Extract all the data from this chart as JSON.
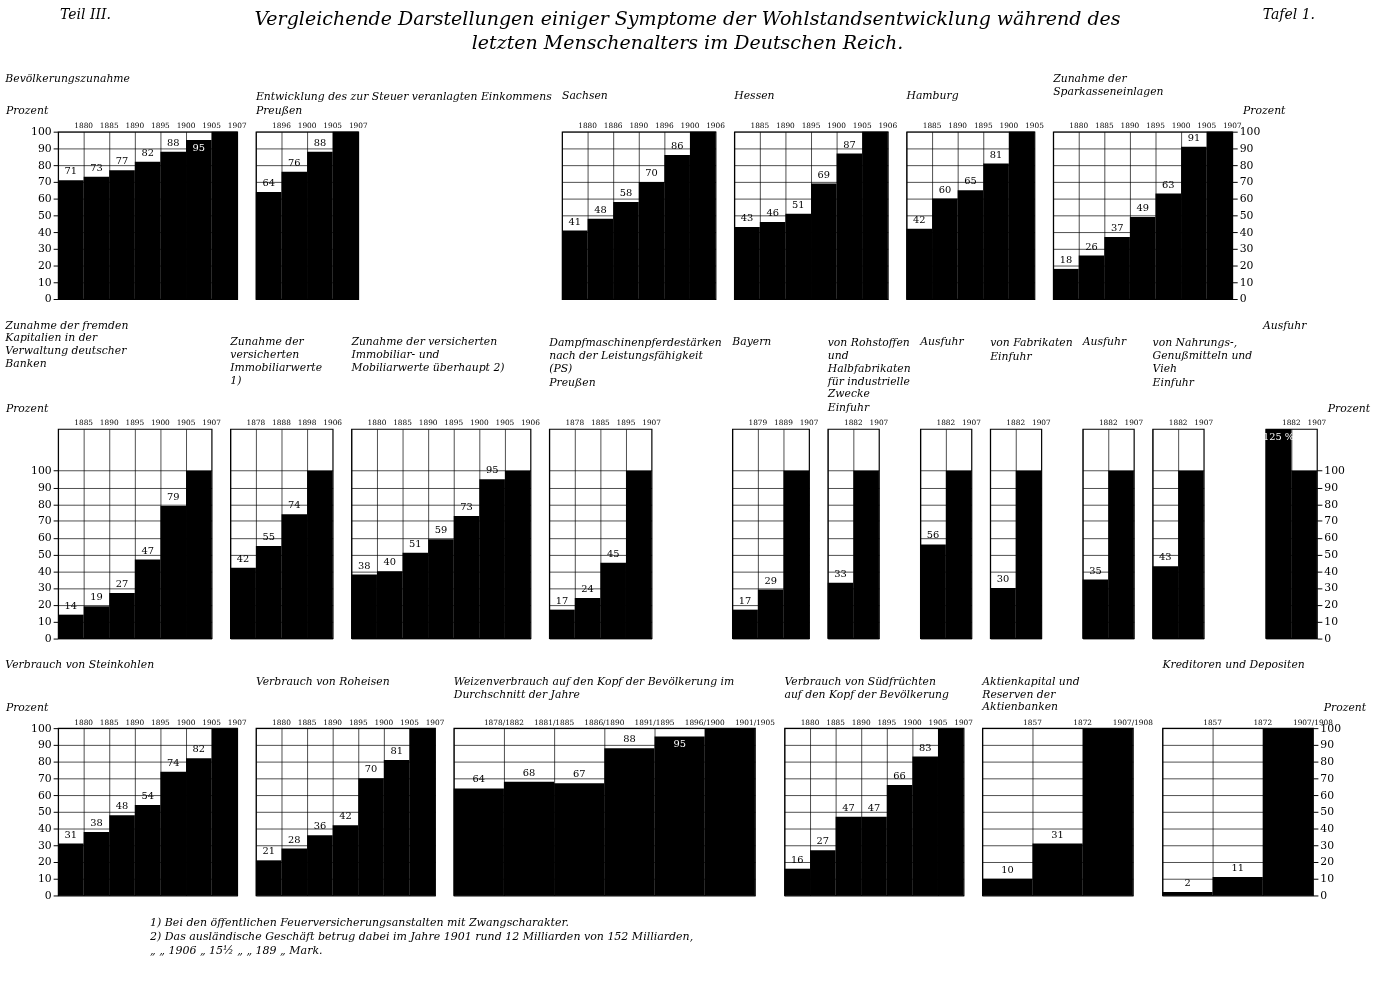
{
  "chart_data": [
    {
      "type": "bar",
      "title": "Bevölkerungszunahme",
      "categories": [
        "1880",
        "1885",
        "1890",
        "1895",
        "1900",
        "1905",
        "1907"
      ],
      "values": [
        71,
        73,
        77,
        82,
        88,
        95,
        100
      ],
      "value_labels": [
        "71",
        "73",
        "77",
        "82",
        "88",
        "95",
        null
      ],
      "color": "#000000",
      "ylim": [
        0,
        100
      ],
      "yticks": [
        0,
        10,
        20,
        30,
        40,
        50,
        60,
        70,
        80,
        90,
        100
      ],
      "ylabel": "Prozent",
      "grid": true,
      "annotations": [
        "Teil III.",
        "Tafel 1.",
        "Vergleichende Darstellungen einiger Symptome der Wohlstandsentwicklung während des letzten Menschenalters im Deutschen Reich."
      ]
    },
    {
      "type": "bar",
      "title": "Entwicklung des zur Steuer veranlagten Einkommens",
      "subtitle": "Preußen",
      "categories": [
        "1896",
        "1900",
        "1905",
        "1907"
      ],
      "values": [
        64,
        76,
        88,
        100
      ],
      "value_labels": [
        "64",
        "76",
        "88",
        null
      ],
      "color": "#000000",
      "ylim": [
        0,
        100
      ],
      "yticks": [
        0,
        10,
        20,
        30,
        40,
        50,
        60,
        70,
        80,
        90,
        100
      ],
      "grid": true,
      "tick_labels": "x"
    },
    {
      "type": "bar",
      "subtitle": "Sachsen",
      "categories": [
        "1880",
        "1886",
        "1890",
        "1896",
        "1900",
        "1906"
      ],
      "values": [
        41,
        48,
        58,
        70,
        86,
        100
      ],
      "value_labels": [
        "41",
        "48",
        "58",
        "70",
        "86",
        null
      ],
      "color": "#000000",
      "ylim": [
        0,
        100
      ],
      "yticks": [
        0,
        10,
        20,
        30,
        40,
        50,
        60,
        70,
        80,
        90,
        100
      ],
      "grid": true,
      "tick_labels": "x"
    },
    {
      "type": "bar",
      "subtitle": "Hessen",
      "categories": [
        "1885",
        "1890",
        "1895",
        "1900",
        "1905",
        "1906"
      ],
      "values": [
        43,
        46,
        51,
        69,
        87,
        100
      ],
      "value_labels": [
        "43",
        "46",
        "51",
        "69",
        "87",
        null
      ],
      "color": "#000000",
      "ylim": [
        0,
        100
      ],
      "yticks": [
        0,
        10,
        20,
        30,
        40,
        50,
        60,
        70,
        80,
        90,
        100
      ],
      "grid": true,
      "tick_labels": "x"
    },
    {
      "type": "bar",
      "subtitle": "Hamburg",
      "categories": [
        "1885",
        "1890",
        "1895",
        "1900",
        "1905"
      ],
      "values": [
        42,
        60,
        65,
        81,
        100
      ],
      "value_labels": [
        "42",
        "60",
        "65",
        "81",
        null
      ],
      "color": "#000000",
      "ylim": [
        0,
        100
      ],
      "yticks": [
        0,
        10,
        20,
        30,
        40,
        50,
        60,
        70,
        80,
        90,
        100
      ],
      "grid": true,
      "tick_labels": "x"
    },
    {
      "type": "bar",
      "title": "Zunahme der Sparkasseneinlagen",
      "categories": [
        "1880",
        "1885",
        "1890",
        "1895",
        "1900",
        "1905",
        "1907"
      ],
      "values": [
        18,
        26,
        37,
        49,
        63,
        91,
        100
      ],
      "value_labels": [
        "18",
        "26",
        "37",
        "49",
        "63",
        "91",
        null
      ],
      "color": "#000000",
      "ylim": [
        0,
        100
      ],
      "yticks": [
        0,
        10,
        20,
        30,
        40,
        50,
        60,
        70,
        80,
        90,
        100
      ],
      "ylabel": "Prozent",
      "grid": true
    },
    {
      "type": "bar",
      "title": "Zunahme der fremden Kapitalien in der Verwaltung deutscher Banken",
      "categories": [
        "1885",
        "1890",
        "1895",
        "1900",
        "1905",
        "1907"
      ],
      "values": [
        14,
        19,
        27,
        47,
        79,
        100
      ],
      "value_labels": [
        "14",
        "19",
        "27",
        "47",
        "79",
        null
      ],
      "color": "#000000",
      "ylim": [
        0,
        125
      ],
      "yticks": [
        0,
        10,
        20,
        30,
        40,
        50,
        60,
        70,
        80,
        90,
        100
      ],
      "ylabel": "Prozent",
      "grid": true
    },
    {
      "type": "bar",
      "title": "Zunahme der versicherten Immobiliarwerte 1)",
      "categories": [
        "1878",
        "1888",
        "1898",
        "1906"
      ],
      "values": [
        42,
        55,
        74,
        100
      ],
      "value_labels": [
        "42",
        "55",
        "74",
        null
      ],
      "color": "#000000",
      "ylim": [
        0,
        125
      ],
      "yticks": [
        0,
        10,
        20,
        30,
        40,
        50,
        60,
        70,
        80,
        90,
        100
      ],
      "grid": true,
      "tick_labels": "x"
    },
    {
      "type": "bar",
      "title": "Zunahme der versicherten Immobiliar- und Mobiliarwerte überhaupt 2)",
      "categories": [
        "1880",
        "1885",
        "1890",
        "1895",
        "1900",
        "1905",
        "1906"
      ],
      "values": [
        38,
        40,
        51,
        59,
        73,
        95,
        100
      ],
      "value_labels": [
        "38",
        "40",
        "51",
        "59",
        "73",
        "95",
        null
      ],
      "color": "#000000",
      "ylim": [
        0,
        125
      ],
      "yticks": [
        0,
        10,
        20,
        30,
        40,
        50,
        60,
        70,
        80,
        90,
        100
      ],
      "grid": true,
      "tick_labels": "x"
    },
    {
      "type": "bar",
      "title": "Dampfmaschinenpferdestärken nach der Leistungsfähigkeit (PS)",
      "subtitle": "Preußen",
      "categories": [
        "1878",
        "1885",
        "1895",
        "1907"
      ],
      "values": [
        17,
        24,
        45,
        100
      ],
      "value_labels": [
        "17",
        "24",
        "45",
        null
      ],
      "color": "#000000",
      "ylim": [
        0,
        125
      ],
      "yticks": [
        0,
        10,
        20,
        30,
        40,
        50,
        60,
        70,
        80,
        90,
        100
      ],
      "grid": true,
      "tick_labels": "x"
    },
    {
      "type": "bar",
      "subtitle": "Bayern",
      "categories": [
        "1879",
        "1889",
        "1907"
      ],
      "values": [
        17,
        29,
        100
      ],
      "value_labels": [
        "17",
        "29",
        null
      ],
      "color": "#000000",
      "ylim": [
        0,
        125
      ],
      "yticks": [
        0,
        10,
        20,
        30,
        40,
        50,
        60,
        70,
        80,
        90,
        100
      ],
      "grid": true,
      "tick_labels": "x"
    },
    {
      "type": "bar",
      "title": "von Rohstoffen und Halbfabrikaten für industrielle Zwecke",
      "subtitle": "Einfuhr",
      "categories": [
        "1882",
        "1907"
      ],
      "values": [
        33,
        100
      ],
      "value_labels": [
        "33",
        null
      ],
      "color": "#000000",
      "ylim": [
        0,
        125
      ],
      "yticks": [
        0,
        10,
        20,
        30,
        40,
        50,
        60,
        70,
        80,
        90,
        100
      ],
      "grid": true,
      "tick_labels": "x"
    },
    {
      "type": "bar",
      "subtitle": "Ausfuhr",
      "categories": [
        "1882",
        "1907"
      ],
      "values": [
        56,
        100
      ],
      "value_labels": [
        "56",
        null
      ],
      "color": "#000000",
      "ylim": [
        0,
        125
      ],
      "yticks": [
        0,
        10,
        20,
        30,
        40,
        50,
        60,
        70,
        80,
        90,
        100
      ],
      "grid": true,
      "tick_labels": "x"
    },
    {
      "type": "bar",
      "title": "von Fabrikaten",
      "subtitle": "Einfuhr",
      "categories": [
        "1882",
        "1907"
      ],
      "values": [
        30,
        100
      ],
      "value_labels": [
        "30",
        null
      ],
      "color": "#000000",
      "ylim": [
        0,
        125
      ],
      "yticks": [
        0,
        10,
        20,
        30,
        40,
        50,
        60,
        70,
        80,
        90,
        100
      ],
      "grid": true,
      "tick_labels": "x"
    },
    {
      "type": "bar",
      "subtitle": "Ausfuhr",
      "categories": [
        "1882",
        "1907"
      ],
      "values": [
        35,
        100
      ],
      "value_labels": [
        "35",
        null
      ],
      "color": "#000000",
      "ylim": [
        0,
        125
      ],
      "yticks": [
        0,
        10,
        20,
        30,
        40,
        50,
        60,
        70,
        80,
        90,
        100
      ],
      "grid": true,
      "tick_labels": "x"
    },
    {
      "type": "bar",
      "title": "von Nahrungs-, Genußmitteln und Vieh",
      "subtitle": "Einfuhr",
      "categories": [
        "1882",
        "1907"
      ],
      "values": [
        43,
        100
      ],
      "value_labels": [
        "43",
        null
      ],
      "color": "#000000",
      "ylim": [
        0,
        125
      ],
      "yticks": [
        0,
        10,
        20,
        30,
        40,
        50,
        60,
        70,
        80,
        90,
        100
      ],
      "grid": true,
      "tick_labels": "x"
    },
    {
      "type": "bar",
      "subtitle": "Ausfuhr",
      "categories": [
        "1882",
        "1907"
      ],
      "values": [
        125,
        100
      ],
      "value_labels": [
        "125 %",
        null
      ],
      "color": "#000000",
      "ylim": [
        0,
        125
      ],
      "yticks": [
        0,
        10,
        20,
        30,
        40,
        50,
        60,
        70,
        80,
        90,
        100
      ],
      "ylabel": "Prozent",
      "grid": true
    },
    {
      "type": "bar",
      "title": "Verbrauch von Steinkohlen",
      "categories": [
        "1880",
        "1885",
        "1890",
        "1895",
        "1900",
        "1905",
        "1907"
      ],
      "values": [
        31,
        38,
        48,
        54,
        74,
        82,
        100
      ],
      "value_labels": [
        "31",
        "38",
        "48",
        "54",
        "74",
        "82",
        null
      ],
      "color": "#000000",
      "ylim": [
        0,
        100
      ],
      "yticks": [
        0,
        10,
        20,
        30,
        40,
        50,
        60,
        70,
        80,
        90,
        100
      ],
      "ylabel": "Prozent",
      "grid": true
    },
    {
      "type": "bar",
      "title": "Verbrauch von Roheisen",
      "categories": [
        "1880",
        "1885",
        "1890",
        "1895",
        "1900",
        "1905",
        "1907"
      ],
      "values": [
        21,
        28,
        36,
        42,
        70,
        81,
        100
      ],
      "value_labels": [
        "21",
        "28",
        "36",
        "42",
        "70",
        "81",
        null
      ],
      "color": "#000000",
      "ylim": [
        0,
        100
      ],
      "yticks": [
        0,
        10,
        20,
        30,
        40,
        50,
        60,
        70,
        80,
        90,
        100
      ],
      "grid": true,
      "tick_labels": "x"
    },
    {
      "type": "bar",
      "title": "Weizenverbrauch auf den Kopf der Bevölkerung im Durchschnitt der Jahre",
      "categories": [
        "1878/1882",
        "1881/1885",
        "1886/1890",
        "1891/1895",
        "1896/1900",
        "1901/1905"
      ],
      "values": [
        64,
        68,
        67,
        88,
        95,
        100
      ],
      "value_labels": [
        "64",
        "68",
        "67",
        "88",
        "95",
        null
      ],
      "color": "#000000",
      "ylim": [
        0,
        100
      ],
      "yticks": [
        0,
        10,
        20,
        30,
        40,
        50,
        60,
        70,
        80,
        90,
        100
      ],
      "grid": true,
      "tick_labels": "x"
    },
    {
      "type": "bar",
      "title": "Verbrauch von Südfrüchten auf den Kopf der Bevölkerung",
      "categories": [
        "1880",
        "1885",
        "1890",
        "1895",
        "1900",
        "1905",
        "1907"
      ],
      "values": [
        16,
        27,
        47,
        47,
        66,
        83,
        100
      ],
      "value_labels": [
        "16",
        "27",
        "47",
        "47",
        "66",
        "83",
        null
      ],
      "color": "#000000",
      "ylim": [
        0,
        100
      ],
      "yticks": [
        0,
        10,
        20,
        30,
        40,
        50,
        60,
        70,
        80,
        90,
        100
      ],
      "grid": true,
      "tick_labels": "x"
    },
    {
      "type": "bar",
      "title": "Aktienkapital und Reserven der Aktienbanken",
      "categories": [
        "1857",
        "1872",
        "1907/1908"
      ],
      "values": [
        10,
        31,
        100
      ],
      "value_labels": [
        "10",
        "31",
        null
      ],
      "color": "#000000",
      "ylim": [
        0,
        100
      ],
      "yticks": [
        0,
        10,
        20,
        30,
        40,
        50,
        60,
        70,
        80,
        90,
        100
      ],
      "grid": true,
      "tick_labels": "x"
    },
    {
      "type": "bar",
      "title": "Kreditoren und Depositen",
      "categories": [
        "1857",
        "1872",
        "1907/1908"
      ],
      "values": [
        2,
        11,
        100
      ],
      "value_labels": [
        "2",
        "11",
        null
      ],
      "color": "#000000",
      "ylim": [
        0,
        100
      ],
      "yticks": [
        0,
        10,
        20,
        30,
        40,
        50,
        60,
        70,
        80,
        90,
        100
      ],
      "ylabel": "Prozent",
      "grid": true,
      "annotations": [
        "1) Bei den öffentlichen Feuerversicherungsanstalten mit Zwangscharakter.",
        "2) Das ausländische Geschäft betrug dabei im Jahre 1901 rund 12 Milliarden von 152 Milliarden,",
        "„ „ 1906 „ 15½ „ „ 189 „ Mark."
      ]
    }
  ]
}
